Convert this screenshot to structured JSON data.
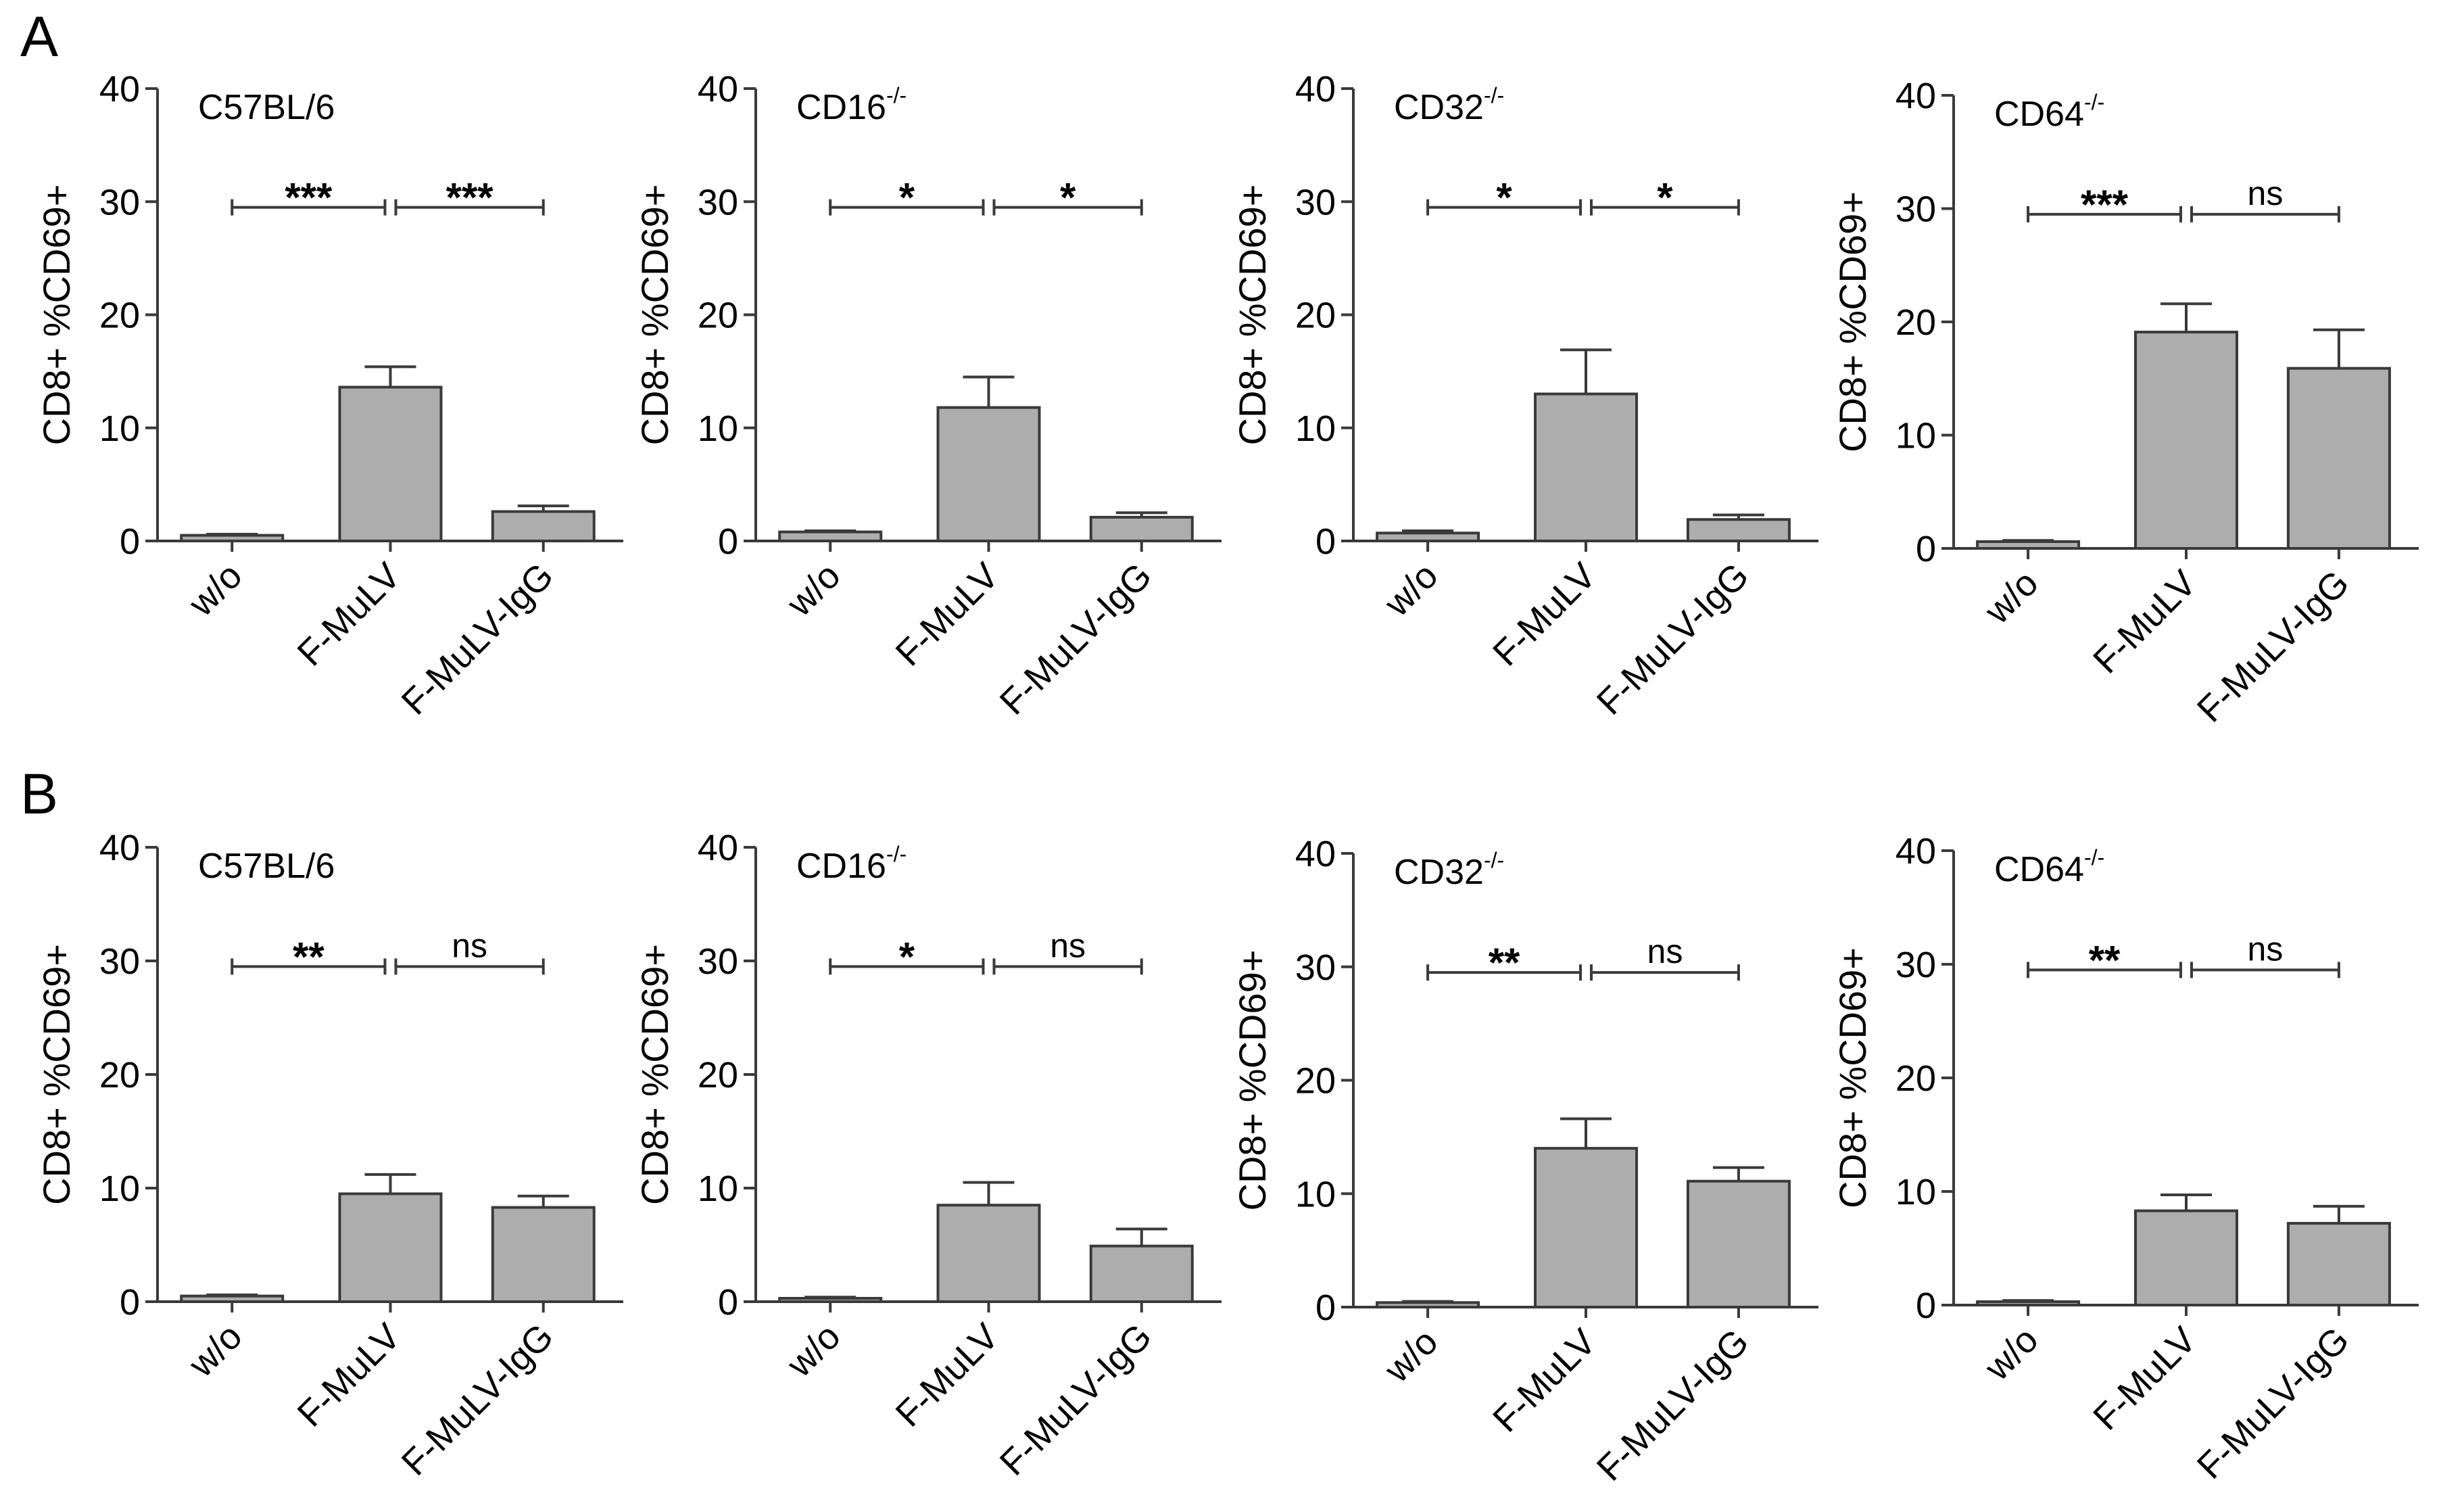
{
  "figure": {
    "panel_labels": [
      "A",
      "B"
    ]
  },
  "chart_data": [
    {
      "type": "bar",
      "panel": "A",
      "title": "C57BL/6",
      "title_sup": "",
      "ylabel": "CD8+ %CD69+",
      "ylim": [
        0,
        40
      ],
      "yticks": [
        0,
        10,
        20,
        30,
        40
      ],
      "categories": [
        "w/o",
        "F-MuLV",
        "F-MuLV-IgG"
      ],
      "values": [
        0.5,
        13.6,
        2.6
      ],
      "errors": [
        0.1,
        1.8,
        0.5
      ],
      "comparisons": [
        {
          "from": "w/o",
          "to": "F-MuLV",
          "label": "***"
        },
        {
          "from": "F-MuLV",
          "to": "F-MuLV-IgG",
          "label": "***"
        }
      ],
      "bar_color": "#adadad"
    },
    {
      "type": "bar",
      "panel": "A",
      "title": "CD16",
      "title_sup": "-/-",
      "ylabel": "CD8+ %CD69+",
      "ylim": [
        0,
        40
      ],
      "yticks": [
        0,
        10,
        20,
        30,
        40
      ],
      "categories": [
        "w/o",
        "F-MuLV",
        "F-MuLV-IgG"
      ],
      "values": [
        0.8,
        11.8,
        2.1
      ],
      "errors": [
        0.1,
        2.7,
        0.4
      ],
      "comparisons": [
        {
          "from": "w/o",
          "to": "F-MuLV",
          "label": "*"
        },
        {
          "from": "F-MuLV",
          "to": "F-MuLV-IgG",
          "label": "*"
        }
      ],
      "bar_color": "#adadad"
    },
    {
      "type": "bar",
      "panel": "A",
      "title": "CD32",
      "title_sup": "-/-",
      "ylabel": "CD8+ %CD69+",
      "ylim": [
        0,
        40
      ],
      "yticks": [
        0,
        10,
        20,
        30,
        40
      ],
      "categories": [
        "w/o",
        "F-MuLV",
        "F-MuLV-IgG"
      ],
      "values": [
        0.7,
        13.0,
        1.9
      ],
      "errors": [
        0.2,
        3.9,
        0.4
      ],
      "comparisons": [
        {
          "from": "w/o",
          "to": "F-MuLV",
          "label": "*"
        },
        {
          "from": "F-MuLV",
          "to": "F-MuLV-IgG",
          "label": "*"
        }
      ],
      "bar_color": "#adadad"
    },
    {
      "type": "bar",
      "panel": "A",
      "title": "CD64",
      "title_sup": "-/-",
      "ylabel": "CD8+ %CD69+",
      "ylim": [
        0,
        40
      ],
      "yticks": [
        0,
        10,
        20,
        30,
        40
      ],
      "categories": [
        "w/o",
        "F-MuLV",
        "F-MuLV-IgG"
      ],
      "values": [
        0.6,
        19.1,
        15.9
      ],
      "errors": [
        0.1,
        2.5,
        3.4
      ],
      "comparisons": [
        {
          "from": "w/o",
          "to": "F-MuLV",
          "label": "***"
        },
        {
          "from": "F-MuLV",
          "to": "F-MuLV-IgG",
          "label": "ns"
        }
      ],
      "bar_color": "#adadad"
    },
    {
      "type": "bar",
      "panel": "B",
      "title": "C57BL/6",
      "title_sup": "",
      "ylabel": "CD8+ %CD69+",
      "ylim": [
        0,
        40
      ],
      "yticks": [
        0,
        10,
        20,
        30,
        40
      ],
      "categories": [
        "w/o",
        "F-MuLV",
        "F-MuLV-IgG"
      ],
      "values": [
        0.5,
        9.5,
        8.3
      ],
      "errors": [
        0.1,
        1.7,
        1.0
      ],
      "comparisons": [
        {
          "from": "w/o",
          "to": "F-MuLV",
          "label": "**"
        },
        {
          "from": "F-MuLV",
          "to": "F-MuLV-IgG",
          "label": "ns"
        }
      ],
      "bar_color": "#adadad"
    },
    {
      "type": "bar",
      "panel": "B",
      "title": "CD16",
      "title_sup": "-/-",
      "ylabel": "CD8+ %CD69+",
      "ylim": [
        0,
        40
      ],
      "yticks": [
        0,
        10,
        20,
        30,
        40
      ],
      "categories": [
        "w/o",
        "F-MuLV",
        "F-MuLV-IgG"
      ],
      "values": [
        0.3,
        8.5,
        4.9
      ],
      "errors": [
        0.1,
        2.0,
        1.5
      ],
      "comparisons": [
        {
          "from": "w/o",
          "to": "F-MuLV",
          "label": "*"
        },
        {
          "from": "F-MuLV",
          "to": "F-MuLV-IgG",
          "label": "ns"
        }
      ],
      "bar_color": "#adadad"
    },
    {
      "type": "bar",
      "panel": "B",
      "title": "CD32",
      "title_sup": "-/-",
      "ylabel": "CD8+ %CD69+",
      "ylim": [
        0,
        40
      ],
      "yticks": [
        0,
        10,
        20,
        30,
        40
      ],
      "categories": [
        "w/o",
        "F-MuLV",
        "F-MuLV-IgG"
      ],
      "values": [
        0.4,
        14.0,
        11.1
      ],
      "errors": [
        0.1,
        2.6,
        1.2
      ],
      "comparisons": [
        {
          "from": "w/o",
          "to": "F-MuLV",
          "label": "**"
        },
        {
          "from": "F-MuLV",
          "to": "F-MuLV-IgG",
          "label": "ns"
        }
      ],
      "bar_color": "#adadad"
    },
    {
      "type": "bar",
      "panel": "B",
      "title": "CD64",
      "title_sup": "-/-",
      "ylabel": "CD8+ %CD69+",
      "ylim": [
        0,
        40
      ],
      "yticks": [
        0,
        10,
        20,
        30,
        40
      ],
      "categories": [
        "w/o",
        "F-MuLV",
        "F-MuLV-IgG"
      ],
      "values": [
        0.3,
        8.3,
        7.2
      ],
      "errors": [
        0.1,
        1.4,
        1.5
      ],
      "comparisons": [
        {
          "from": "w/o",
          "to": "F-MuLV",
          "label": "**"
        },
        {
          "from": "F-MuLV",
          "to": "F-MuLV-IgG",
          "label": "ns"
        }
      ],
      "bar_color": "#adadad"
    }
  ]
}
